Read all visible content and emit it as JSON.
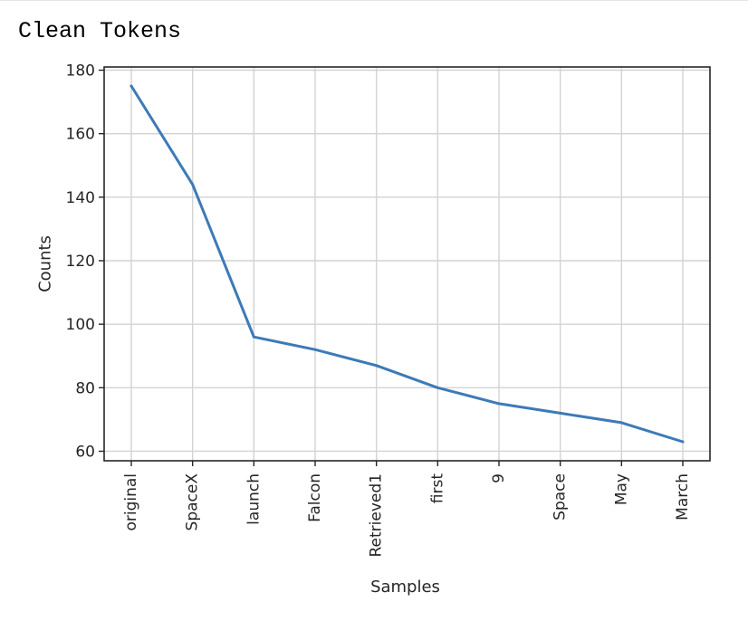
{
  "output": {
    "title": "Clean Tokens"
  },
  "chart_data": {
    "type": "line",
    "categories": [
      "original",
      "SpaceX",
      "launch",
      "Falcon",
      "Retrieved1",
      "first",
      "9",
      "Space",
      "May",
      "March"
    ],
    "series": [
      {
        "values": [
          175,
          144,
          96,
          92,
          87,
          80,
          75,
          72,
          69,
          63
        ]
      }
    ],
    "xlabel": "Samples",
    "ylabel": "Counts",
    "ylim": [
      57,
      181
    ],
    "yticks": [
      60,
      80,
      100,
      120,
      140,
      160,
      180
    ],
    "grid": true,
    "line_color": "#3d7ab8",
    "grid_color": "#d3d3d3"
  }
}
